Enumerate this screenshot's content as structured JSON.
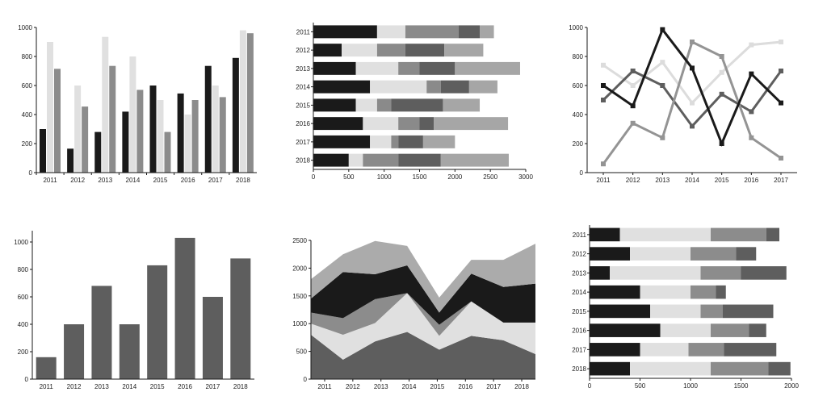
{
  "palette": {
    "axis": "#1a1a1a",
    "black": "#1a1a1a",
    "light": "#e0e0e0",
    "mid": "#8c8c8c",
    "dark": "#5e5e5e",
    "silver": "#ababab",
    "gray_c": "#8a8a8a",
    "gray_d": "#5e5e5e",
    "gray_e": "#a6a6a6",
    "line_light": "#dcdcdc",
    "line_mid": "#949494"
  },
  "chart_data": [
    {
      "id": "c1",
      "type": "bar",
      "categories": [
        "2011",
        "2012",
        "2013",
        "2014",
        "2015",
        "2016",
        "2017",
        "2018"
      ],
      "ylim": [
        0,
        1000
      ],
      "yticks": [
        "0",
        "200",
        "400",
        "600",
        "800",
        "1000"
      ],
      "series": [
        {
          "values": [
            300,
            165,
            280,
            420,
            600,
            545,
            735,
            790
          ]
        },
        {
          "values": [
            900,
            600,
            935,
            800,
            500,
            400,
            600,
            980
          ]
        },
        {
          "values": [
            715,
            455,
            735,
            570,
            280,
            500,
            520,
            960
          ]
        }
      ]
    },
    {
      "id": "c2",
      "type": "bar",
      "orientation": "horizontal",
      "stacked": true,
      "categories": [
        "2011",
        "2012",
        "2013",
        "2014",
        "2015",
        "2016",
        "2017",
        "2018"
      ],
      "xlim": [
        0,
        3000
      ],
      "xticks": [
        "0",
        "500",
        "1000",
        "1500",
        "2000",
        "2500",
        "3000"
      ],
      "series": [
        {
          "values": [
            900,
            400,
            600,
            800,
            600,
            700,
            800,
            500
          ]
        },
        {
          "values": [
            400,
            500,
            600,
            800,
            300,
            500,
            300,
            200
          ]
        },
        {
          "values": [
            750,
            400,
            300,
            200,
            200,
            300,
            100,
            500
          ]
        },
        {
          "values": [
            300,
            550,
            500,
            400,
            730,
            200,
            350,
            600
          ]
        },
        {
          "values": [
            200,
            550,
            920,
            400,
            520,
            1050,
            450,
            960
          ]
        }
      ]
    },
    {
      "id": "c3",
      "type": "line",
      "categories": [
        "2011",
        "2012",
        "2013",
        "2014",
        "2015",
        "2016",
        "2017"
      ],
      "ylim": [
        0,
        1000
      ],
      "yticks": [
        "0",
        "200",
        "400",
        "600",
        "800",
        "1000"
      ],
      "series": [
        {
          "values": [
            740,
            600,
            760,
            480,
            690,
            880,
            900
          ]
        },
        {
          "values": [
            500,
            700,
            600,
            320,
            540,
            420,
            700
          ]
        },
        {
          "values": [
            60,
            340,
            240,
            900,
            800,
            240,
            100
          ]
        },
        {
          "values": [
            600,
            460,
            985,
            720,
            200,
            680,
            480
          ]
        }
      ]
    },
    {
      "id": "c4",
      "type": "bar",
      "categories": [
        "2011",
        "2012",
        "2013",
        "2014",
        "2015",
        "2016",
        "2017",
        "2018"
      ],
      "ylim": [
        0,
        1000
      ],
      "yticks": [
        "0",
        "200",
        "400",
        "600",
        "800",
        "1000"
      ],
      "series": [
        {
          "values": [
            160,
            400,
            680,
            400,
            830,
            1030,
            600,
            880
          ]
        }
      ]
    },
    {
      "id": "c5",
      "type": "area",
      "stacked": true,
      "categories": [
        "2011",
        "2012",
        "2013",
        "2014",
        "2015",
        "2016",
        "2017",
        "2018"
      ],
      "ylim": [
        0,
        2500
      ],
      "yticks": [
        "0",
        "500",
        "1000",
        "1500",
        "2000",
        "2500"
      ],
      "series": [
        {
          "values": [
            800,
            350,
            680,
            850,
            530,
            780,
            700,
            450
          ]
        },
        {
          "values": [
            200,
            450,
            330,
            700,
            250,
            620,
            320,
            570
          ]
        },
        {
          "values": [
            200,
            300,
            430,
            0,
            200,
            0,
            0,
            0
          ]
        },
        {
          "values": [
            250,
            830,
            450,
            500,
            220,
            500,
            640,
            700
          ]
        },
        {
          "values": [
            350,
            320,
            600,
            350,
            270,
            250,
            490,
            720
          ]
        }
      ]
    },
    {
      "id": "c6",
      "type": "bar",
      "orientation": "horizontal",
      "stacked": true,
      "categories": [
        "2011",
        "2012",
        "2013",
        "2014",
        "2015",
        "2016",
        "2017",
        "2018"
      ],
      "xlim": [
        0,
        2000
      ],
      "xticks": [
        "0",
        "500",
        "1000",
        "1500",
        "2000"
      ],
      "series": [
        {
          "values": [
            300,
            400,
            200,
            500,
            600,
            700,
            500,
            400
          ]
        },
        {
          "values": [
            900,
            600,
            900,
            500,
            500,
            500,
            480,
            800
          ]
        },
        {
          "values": [
            550,
            450,
            400,
            250,
            220,
            380,
            350,
            570
          ]
        },
        {
          "values": [
            130,
            200,
            450,
            100,
            500,
            170,
            520,
            220
          ]
        }
      ]
    }
  ]
}
